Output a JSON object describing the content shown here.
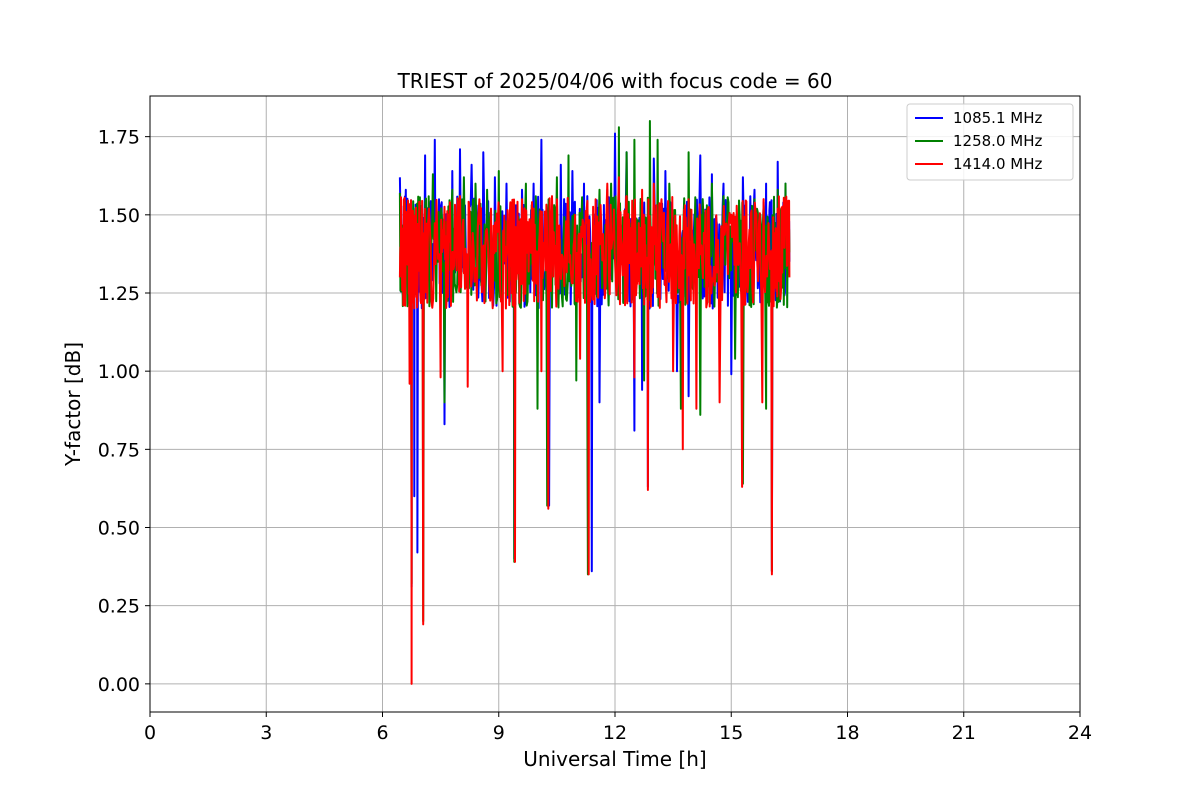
{
  "chart_data": {
    "type": "line",
    "title": "TRIEST of 2025/04/06 with focus code = 60",
    "xlabel": "Universal Time [h]",
    "ylabel": "Y-factor [dB]",
    "xlim": [
      0,
      24
    ],
    "ylim": [
      -0.09,
      1.88
    ],
    "xticks": [
      0,
      3,
      6,
      9,
      12,
      15,
      18,
      21,
      24
    ],
    "xtick_labels": [
      "0",
      "3",
      "6",
      "9",
      "12",
      "15",
      "18",
      "21",
      "24"
    ],
    "yticks": [
      0.0,
      0.25,
      0.5,
      0.75,
      1.0,
      1.25,
      1.5,
      1.75
    ],
    "ytick_labels": [
      "0.00",
      "0.25",
      "0.50",
      "0.75",
      "1.00",
      "1.25",
      "1.50",
      "1.75"
    ],
    "grid": true,
    "legend_position": "top-right",
    "x_range": [
      6.45,
      16.5
    ],
    "series": [
      {
        "name": "1085.1 MHz",
        "color": "#0000ff",
        "x": [
          6.45,
          6.6,
          6.75,
          6.82,
          6.9,
          7.1,
          7.35,
          7.6,
          7.8,
          8.0,
          8.3,
          8.6,
          8.9,
          9.2,
          9.4,
          9.6,
          9.9,
          10.1,
          10.3,
          10.6,
          10.9,
          11.2,
          11.4,
          11.6,
          11.8,
          12.0,
          12.3,
          12.5,
          12.7,
          12.85,
          13.0,
          13.3,
          13.6,
          13.9,
          14.2,
          14.5,
          14.8,
          15.0,
          15.3,
          15.6,
          15.9,
          16.05,
          16.2,
          16.4,
          16.5
        ],
        "y": [
          1.62,
          1.58,
          0.31,
          0.6,
          0.42,
          1.69,
          1.74,
          0.83,
          1.64,
          1.71,
          1.66,
          1.7,
          1.62,
          1.6,
          0.4,
          1.58,
          1.6,
          1.74,
          0.57,
          1.66,
          1.64,
          1.6,
          0.36,
          0.9,
          1.58,
          1.76,
          1.7,
          0.81,
          0.94,
          0.63,
          1.68,
          1.64,
          1.0,
          0.92,
          1.69,
          1.63,
          1.6,
          0.99,
          1.62,
          1.58,
          1.6,
          0.36,
          1.67,
          1.6,
          1.35
        ]
      },
      {
        "name": "1258.0 MHz",
        "color": "#008000",
        "x": [
          6.45,
          6.6,
          6.75,
          6.85,
          7.05,
          7.3,
          7.6,
          7.8,
          8.1,
          8.4,
          8.7,
          9.0,
          9.3,
          9.4,
          9.7,
          10.0,
          10.25,
          10.5,
          10.8,
          11.0,
          11.3,
          11.6,
          11.9,
          12.1,
          12.3,
          12.5,
          12.75,
          12.9,
          13.1,
          13.4,
          13.7,
          13.9,
          14.2,
          14.5,
          14.8,
          15.1,
          15.3,
          15.6,
          15.9,
          16.05,
          16.2,
          16.4,
          16.5
        ],
        "y": [
          1.57,
          1.5,
          0.32,
          1.52,
          0.2,
          1.63,
          0.9,
          1.58,
          1.62,
          1.6,
          1.58,
          1.64,
          1.5,
          0.39,
          1.6,
          0.88,
          0.57,
          1.62,
          1.69,
          0.97,
          0.35,
          1.58,
          1.6,
          1.78,
          1.7,
          1.74,
          0.97,
          1.8,
          1.74,
          1.6,
          0.88,
          1.7,
          0.86,
          1.6,
          1.56,
          1.04,
          0.64,
          1.55,
          0.88,
          0.36,
          1.58,
          1.6,
          1.38
        ]
      },
      {
        "name": "1414.0 MHz",
        "color": "#ff0000",
        "x": [
          6.45,
          6.55,
          6.7,
          6.75,
          6.85,
          7.05,
          7.2,
          7.5,
          7.7,
          8.0,
          8.2,
          8.5,
          8.8,
          9.1,
          9.3,
          9.42,
          9.6,
          9.9,
          10.1,
          10.28,
          10.5,
          10.8,
          11.1,
          11.32,
          11.5,
          11.8,
          12.1,
          12.3,
          12.5,
          12.7,
          12.85,
          13.0,
          13.2,
          13.5,
          13.75,
          13.9,
          14.1,
          14.4,
          14.7,
          15.0,
          15.28,
          15.5,
          15.8,
          16.05,
          16.2,
          16.4,
          16.5
        ],
        "y": [
          1.3,
          1.55,
          0.96,
          0.0,
          1.48,
          0.19,
          1.52,
          0.98,
          1.5,
          1.56,
          0.95,
          1.55,
          1.52,
          1.0,
          1.54,
          0.39,
          1.55,
          1.52,
          1.0,
          0.56,
          1.55,
          1.5,
          1.04,
          0.35,
          1.55,
          1.6,
          1.62,
          1.56,
          0.98,
          1.58,
          0.62,
          1.6,
          1.55,
          1.0,
          0.75,
          1.55,
          0.88,
          1.52,
          0.9,
          1.5,
          0.63,
          1.5,
          0.9,
          0.35,
          1.52,
          1.55,
          1.3
        ]
      }
    ]
  }
}
